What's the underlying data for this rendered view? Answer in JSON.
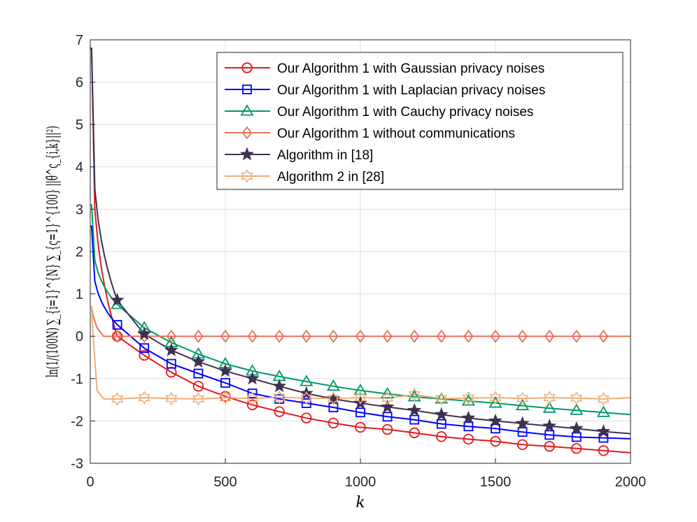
{
  "chart_data": {
    "type": "line",
    "title": "",
    "xlabel": "k",
    "ylabel": "ln(1/(100N) ∑_{i=1}^{N} ∑_{ς=1}^{100} ||θ̃^ς_{i,k}||²)",
    "xlim": [
      0,
      2000
    ],
    "ylim": [
      -3,
      7
    ],
    "xticks": [
      0,
      500,
      1000,
      1500,
      2000
    ],
    "yticks": [
      -3,
      -2,
      -1,
      0,
      1,
      2,
      3,
      4,
      5,
      6,
      7
    ],
    "grid": true,
    "legend_position": "top-right",
    "x": [
      100,
      200,
      300,
      400,
      500,
      600,
      700,
      800,
      900,
      1000,
      1100,
      1200,
      1300,
      1400,
      1500,
      1600,
      1700,
      1800,
      1900
    ],
    "series": [
      {
        "name": "Our Algorithm 1 with Gaussian privacy noises",
        "color": "#e41a1c",
        "marker": "circle",
        "start": 6.8,
        "values": [
          0.0,
          -0.45,
          -0.85,
          -1.18,
          -1.42,
          -1.62,
          -1.78,
          -1.93,
          -2.05,
          -2.15,
          -2.2,
          -2.28,
          -2.37,
          -2.43,
          -2.48,
          -2.56,
          -2.6,
          -2.65,
          -2.7
        ],
        "end": -2.75
      },
      {
        "name": "Our Algorithm 1 with Laplacian privacy noises",
        "color": "#0000ff",
        "marker": "square",
        "start": 2.6,
        "values": [
          0.27,
          -0.28,
          -0.65,
          -0.88,
          -1.1,
          -1.35,
          -1.48,
          -1.58,
          -1.68,
          -1.8,
          -1.9,
          -1.97,
          -2.07,
          -2.13,
          -2.18,
          -2.26,
          -2.33,
          -2.38,
          -2.4
        ],
        "end": -2.42
      },
      {
        "name": "Our Algorithm 1 with Cauchy privacy noises",
        "color": "#009966",
        "marker": "triangle",
        "start": 3.1,
        "values": [
          0.75,
          0.2,
          -0.15,
          -0.42,
          -0.65,
          -0.82,
          -0.95,
          -1.07,
          -1.18,
          -1.28,
          -1.36,
          -1.43,
          -1.48,
          -1.53,
          -1.58,
          -1.64,
          -1.7,
          -1.75,
          -1.8
        ],
        "end": -1.85
      },
      {
        "name": "Our Algorithm 1 without communications",
        "color": "#e8705a",
        "marker": "diamond",
        "start": 0.7,
        "values": [
          0.0,
          0.0,
          0.0,
          0.0,
          0.0,
          0.0,
          0.0,
          0.0,
          0.0,
          0.0,
          0.0,
          0.0,
          0.0,
          0.0,
          0.0,
          0.0,
          0.0,
          0.0,
          0.0
        ],
        "end": 0.0
      },
      {
        "name": "Algorithm in [18]",
        "color": "#3d3151",
        "marker": "star",
        "start": 6.8,
        "values": [
          0.85,
          0.05,
          -0.33,
          -0.6,
          -0.82,
          -1.0,
          -1.18,
          -1.35,
          -1.48,
          -1.58,
          -1.67,
          -1.75,
          -1.85,
          -1.93,
          -2.0,
          -2.06,
          -2.12,
          -2.18,
          -2.25
        ],
        "end": -2.3
      },
      {
        "name": "Algorithm 2 in [28]",
        "color": "#f0ad78",
        "marker": "hexagram",
        "start": 0.7,
        "values": [
          -1.48,
          -1.45,
          -1.47,
          -1.48,
          -1.45,
          -1.47,
          -1.44,
          -1.46,
          -1.47,
          -1.45,
          -1.46,
          -1.38,
          -1.47,
          -1.46,
          -1.45,
          -1.47,
          -1.45,
          -1.46,
          -1.48
        ],
        "end": -1.45
      }
    ]
  }
}
